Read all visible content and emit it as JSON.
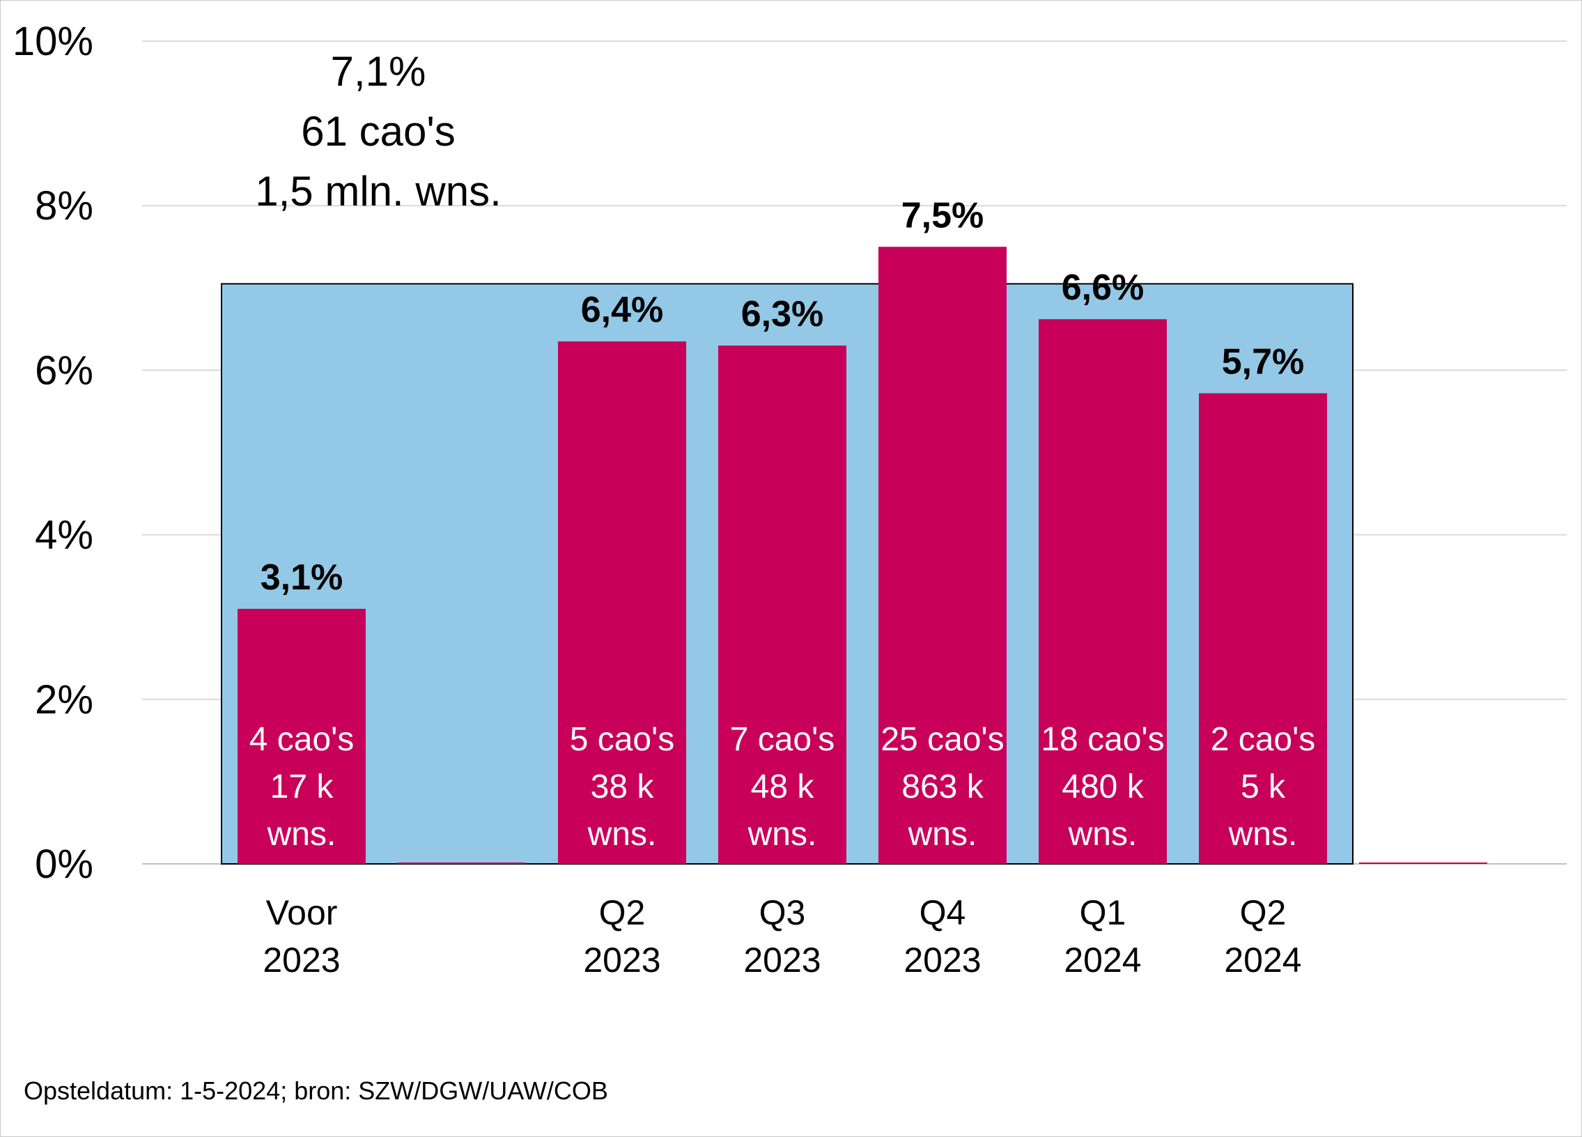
{
  "chart_data": {
    "type": "bar",
    "categories": [
      [
        "Voor",
        "2023"
      ],
      [
        "",
        ""
      ],
      [
        "Q2",
        "2023"
      ],
      [
        "Q3",
        "2023"
      ],
      [
        "Q4",
        "2023"
      ],
      [
        "Q1",
        "2024"
      ],
      [
        "Q2",
        "2024"
      ],
      [
        "",
        ""
      ]
    ],
    "values": [
      3.1,
      0,
      6.35,
      6.3,
      7.5,
      6.62,
      5.72,
      0
    ],
    "value_labels": [
      "3,1%",
      "",
      "6,4%",
      "6,3%",
      "7,5%",
      "6,6%",
      "5,7%",
      ""
    ],
    "inner_labels": [
      [
        "4 cao's",
        "17 k",
        "wns."
      ],
      [],
      [
        "5 cao's",
        "38 k",
        "wns."
      ],
      [
        "7 cao's",
        "48 k",
        "wns."
      ],
      [
        "25 cao's",
        "863 k",
        "wns."
      ],
      [
        "18 cao's",
        "480 k",
        "wns."
      ],
      [
        "2 cao's",
        "5 k",
        "wns."
      ],
      []
    ],
    "average": {
      "value": 7.05,
      "lines": [
        "7,1%",
        "61 cao's",
        "1,5 mln. wns."
      ]
    },
    "ylim": [
      0,
      10
    ],
    "yticks": [
      0,
      2,
      4,
      6,
      8,
      10
    ],
    "ytick_labels": [
      "0%",
      "2%",
      "4%",
      "6%",
      "8%",
      "10%"
    ],
    "grid": true,
    "colors": {
      "bar": "#c8005a",
      "average_area": "#93c9e6",
      "grid": "#d9d9d9",
      "axis": "#bfbfbf"
    },
    "footnote": "Opsteldatum: 1-5-2024; bron: SZW/DGW/UAW/COB"
  }
}
